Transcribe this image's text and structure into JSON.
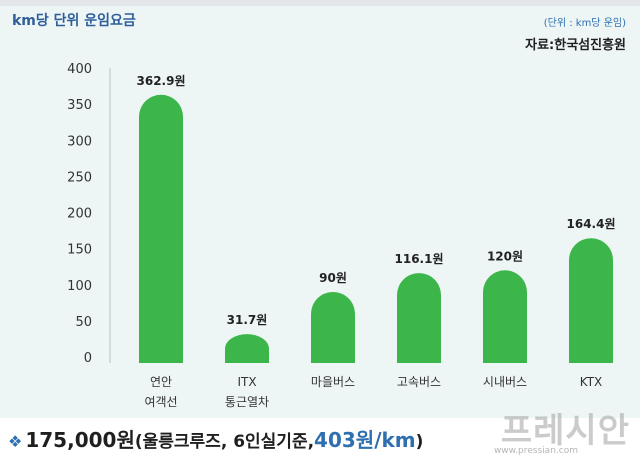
{
  "header": {
    "title": "km당 단위 운임요금",
    "unit": "(단위 : km당 운임)",
    "source": "자료:한국섬진흥원"
  },
  "chart_data": {
    "type": "bar",
    "categories": [
      [
        "연안",
        "여객선"
      ],
      [
        "ITX",
        "통근열차"
      ],
      [
        "마을버스"
      ],
      [
        "고속버스"
      ],
      [
        "시내버스"
      ],
      [
        "KTX"
      ]
    ],
    "values": [
      362.9,
      31.7,
      90,
      116.1,
      120,
      164.4
    ],
    "value_labels": [
      "362.9원",
      "31.7원",
      "90원",
      "116.1원",
      "120원",
      "164.4원"
    ],
    "y_ticks": [
      0,
      50,
      100,
      150,
      200,
      250,
      300,
      350,
      400
    ],
    "ylim": [
      0,
      400
    ],
    "bar_color": "#3cb54a",
    "grid": false
  },
  "footer": {
    "diamond": "❖",
    "fare": "175,000원",
    "condition": "(울릉크루즈, 6인실기준, ",
    "rate": "403원/km",
    "close": ")"
  },
  "watermark": {
    "logo": "프레시안",
    "url": "www.pressian.com"
  }
}
